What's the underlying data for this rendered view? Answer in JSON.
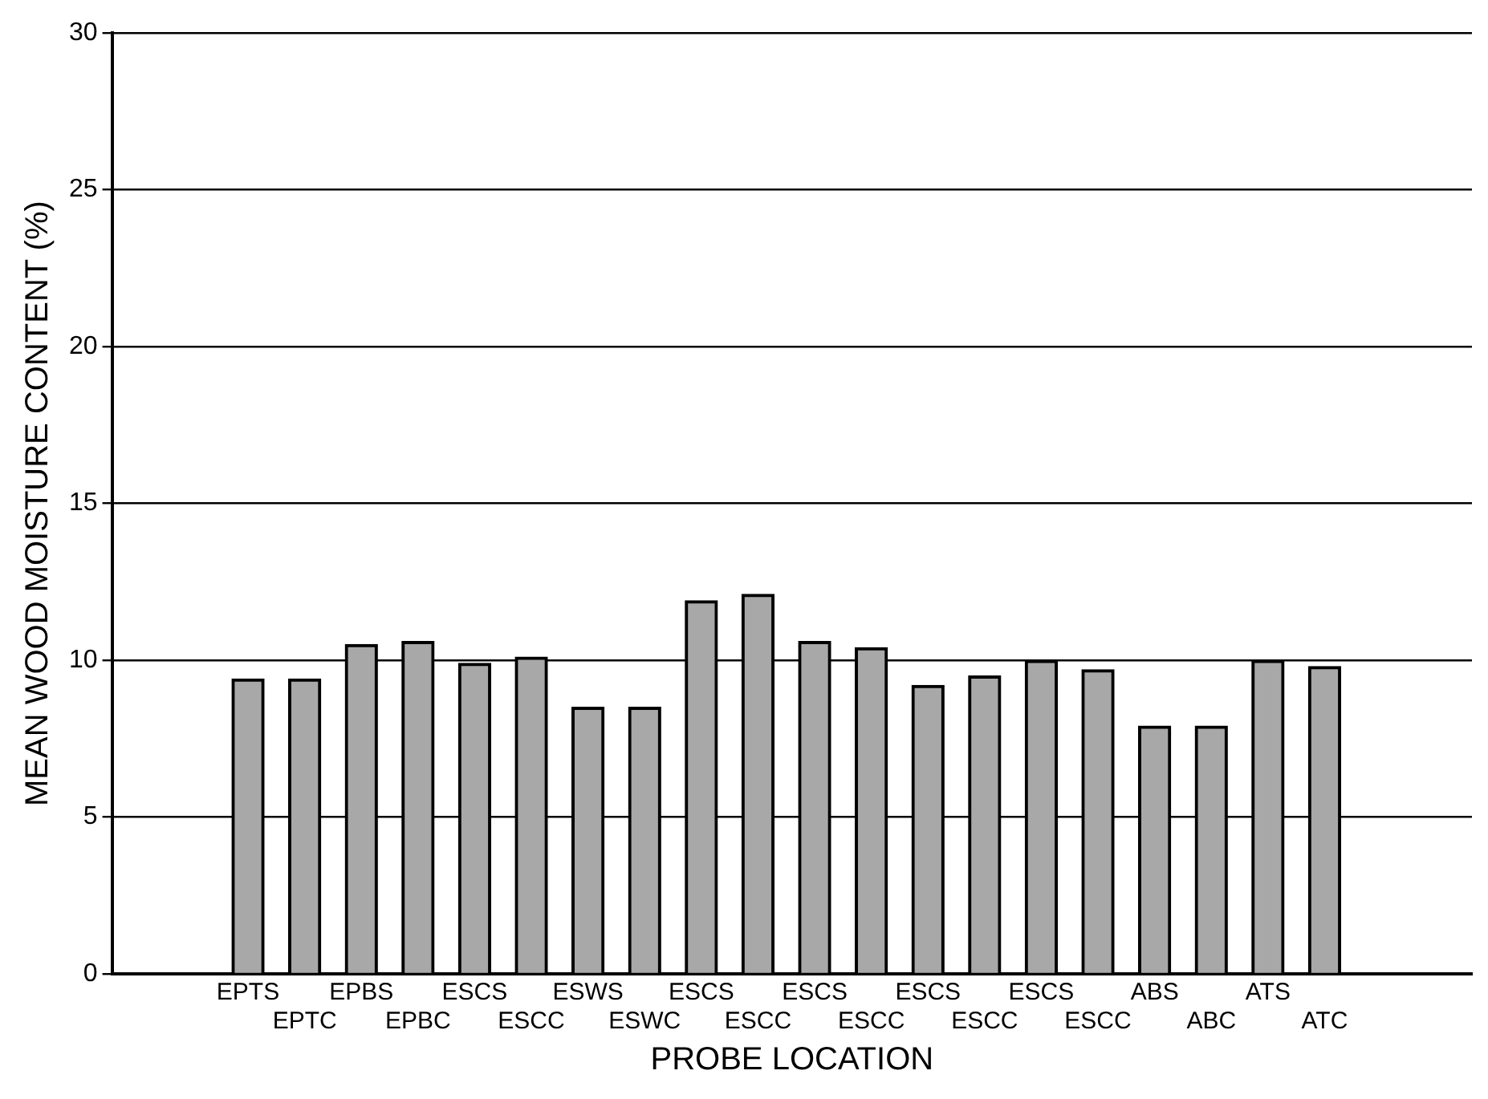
{
  "chart_data": {
    "type": "bar",
    "xlabel": "PROBE LOCATION",
    "ylabel": "MEAN WOOD MOISTURE CONTENT (%)",
    "categories": [
      "EPTS",
      "EPTC",
      "EPBS",
      "EPBC",
      "ESCS",
      "ESCC",
      "ESWS",
      "ESWC",
      "ESCS",
      "ESCC",
      "ESCS",
      "ESCC",
      "ESCS",
      "ESCC",
      "ESCS",
      "ESCC",
      "ABS",
      "ABC",
      "ATS",
      "ATC"
    ],
    "values": [
      9.4,
      9.4,
      10.5,
      10.6,
      9.9,
      10.1,
      8.5,
      8.5,
      11.9,
      12.1,
      10.6,
      10.4,
      9.2,
      9.5,
      10.0,
      9.7,
      7.9,
      7.9,
      10.0,
      9.8
    ],
    "color": "#a8a8a8",
    "ylim": [
      0,
      30
    ],
    "yticks": [
      0,
      5,
      10,
      15,
      20,
      25,
      30
    ],
    "grid": "y",
    "legend": false
  }
}
